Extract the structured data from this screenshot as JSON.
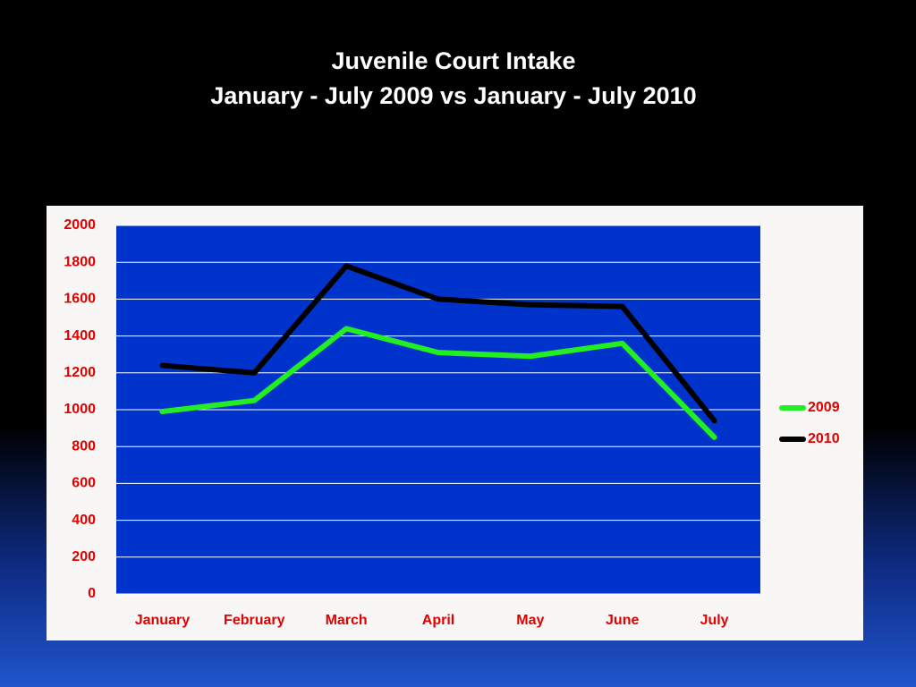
{
  "chart_data": {
    "type": "line",
    "title": "Juvenile Court Intake",
    "subtitle": "January - July 2009 vs January - July 2010",
    "categories": [
      "January",
      "February",
      "March",
      "April",
      "May",
      "June",
      "July"
    ],
    "series": [
      {
        "name": "2009",
        "color": "#22ee22",
        "values": [
          990,
          1050,
          1440,
          1310,
          1290,
          1360,
          850
        ]
      },
      {
        "name": "2010",
        "color": "#000000",
        "values": [
          1240,
          1200,
          1780,
          1600,
          1570,
          1560,
          940
        ]
      }
    ],
    "ylim": [
      0,
      2000
    ],
    "yticks": [
      0,
      200,
      400,
      600,
      800,
      1000,
      1200,
      1400,
      1600,
      1800,
      2000
    ],
    "grid": true,
    "legend": "right"
  }
}
